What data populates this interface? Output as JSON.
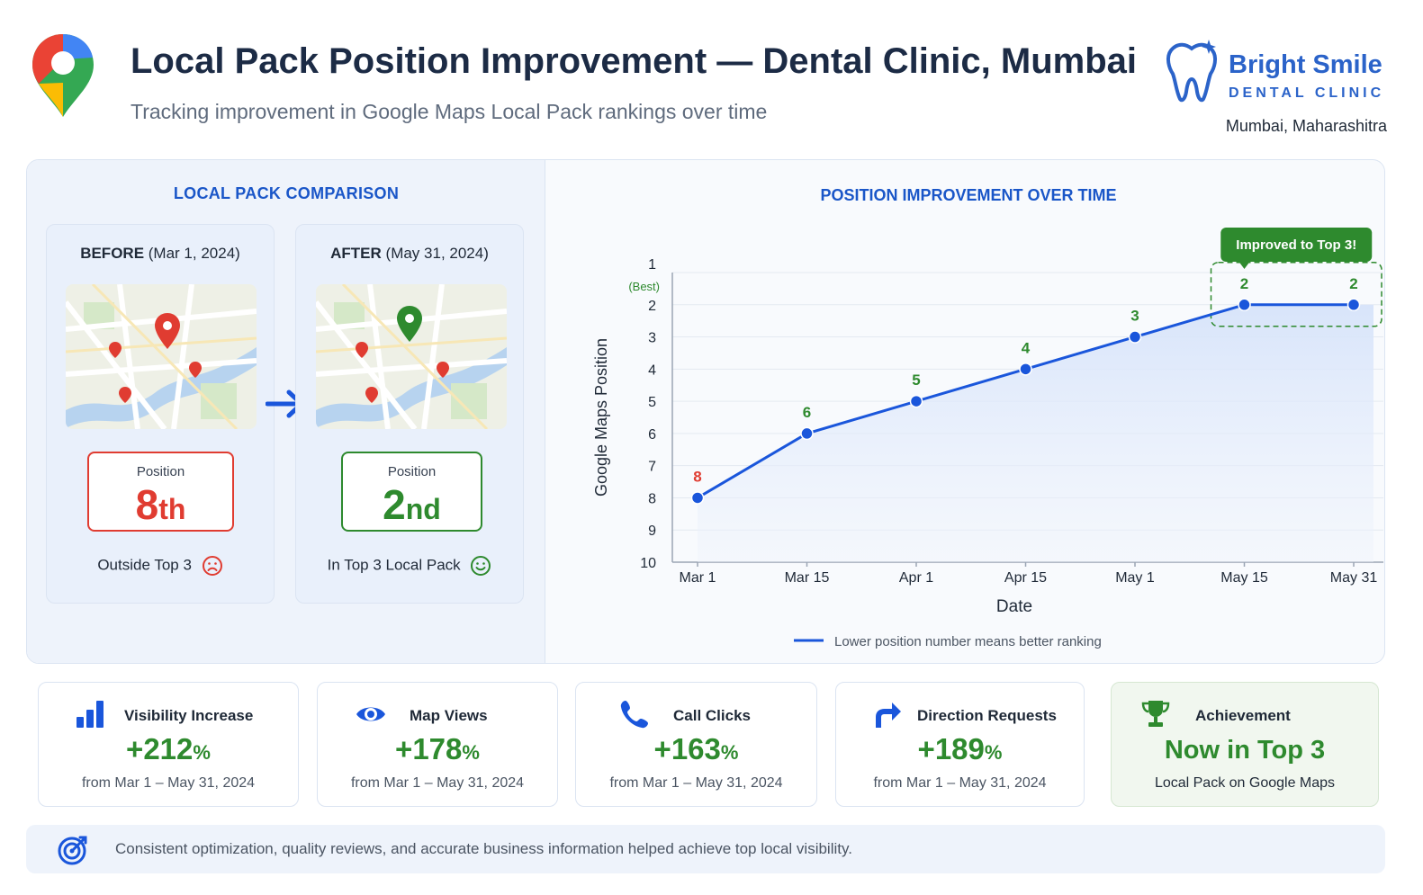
{
  "header": {
    "title": "Local Pack Position Improvement — Dental Clinic, Mumbai",
    "subtitle": "Tracking improvement in Google Maps Local Pack rankings over time",
    "logo_icon": "google-maps-pin-icon"
  },
  "brand": {
    "name": "Bright Smile",
    "sub": "DENTAL CLINIC",
    "city": "Mumbai, Maharashitra",
    "color": "#2b63c9"
  },
  "comparison": {
    "title": "LOCAL PACK COMPARISON",
    "before": {
      "head_bold": "BEFORE",
      "head_date": "(Mar 1, 2024)",
      "pos_label": "Position",
      "pos_number": "8",
      "pos_suffix": "th",
      "status": "Outside Top 3",
      "color": "#e03c31"
    },
    "after": {
      "head_bold": "AFTER",
      "head_date": "(May 31, 2024)",
      "pos_label": "Position",
      "pos_number": "2",
      "pos_suffix": "nd",
      "status": "In Top 3 Local Pack",
      "color": "#2e8a2e"
    }
  },
  "chart_title": "POSITION IMPROVEMENT OVER TIME",
  "chart_data": {
    "type": "line",
    "title": "POSITION IMPROVEMENT OVER TIME",
    "xlabel": "Date",
    "ylabel": "Google Maps Position",
    "categories": [
      "Mar 1",
      "Mar 15",
      "Apr 1",
      "Apr 15",
      "May 1",
      "May 15",
      "May 31"
    ],
    "series": [
      {
        "values": [
          8,
          6,
          5,
          4,
          3,
          2,
          2
        ]
      }
    ],
    "data_labels": [
      "8",
      "6",
      "5",
      "4",
      "3",
      "2",
      "2"
    ],
    "yticks": [
      "1",
      "2",
      "3",
      "4",
      "5",
      "6",
      "7",
      "8",
      "9",
      "10"
    ],
    "ytick_top_note": "(Best)",
    "ylim": [
      1,
      10
    ],
    "y_inverted": true,
    "grid": "horizontal",
    "legend_text": "Lower position number means better ranking",
    "legend_position": "bottom",
    "callout": "Improved to Top 3!",
    "line_color": "#1a56db",
    "bad_color": "#e03c31",
    "good_color": "#2e8a2e"
  },
  "stats": [
    {
      "label": "Visibility Increase",
      "value": "+212",
      "unit": "%",
      "foot": "from Mar 1 – May 31, 2024",
      "icon": "bar-chart-icon"
    },
    {
      "label": "Map Views",
      "value": "+178",
      "unit": "%",
      "foot": "from Mar 1 – May 31, 2024",
      "icon": "eye-icon"
    },
    {
      "label": "Call Clicks",
      "value": "+163",
      "unit": "%",
      "foot": "from Mar 1 – May 31, 2024",
      "icon": "phone-icon"
    },
    {
      "label": "Direction Requests",
      "value": "+189",
      "unit": "%",
      "foot": "from Mar 1 – May 31, 2024",
      "icon": "direction-arrow-icon"
    },
    {
      "label": "Achievement",
      "value": "Now in Top 3",
      "unit": "",
      "foot": "Local Pack on Google Maps",
      "icon": "trophy-icon"
    }
  ],
  "footer": {
    "text": "Consistent optimization, quality reviews, and accurate business information helped achieve top local visibility.",
    "icon": "target-icon"
  }
}
